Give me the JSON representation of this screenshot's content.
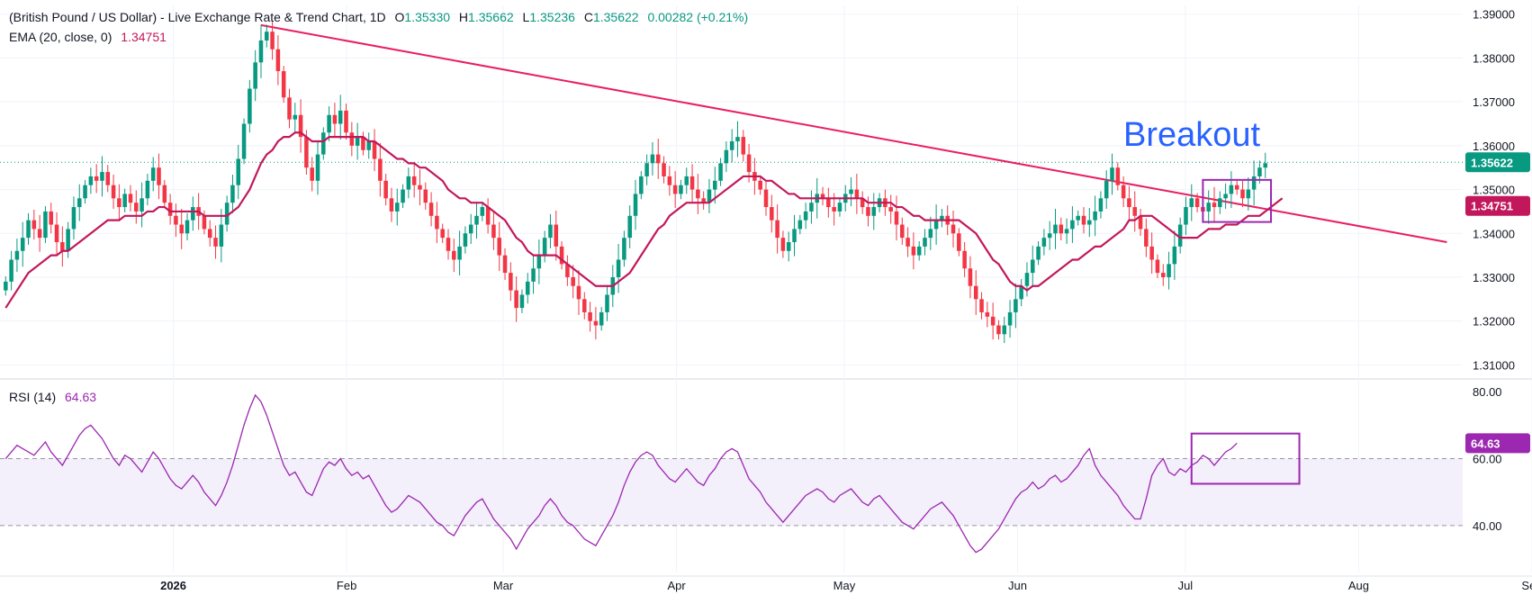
{
  "legend": {
    "symbol": "(British Pound / US Dollar) - Live Exchange Rate & Trend Chart, 1D",
    "o_label": "O",
    "o": "1.35330",
    "h_label": "H",
    "h": "1.35662",
    "l_label": "L",
    "l": "1.35236",
    "c_label": "C",
    "c": "1.35622",
    "change": "0.00282 (+0.21%)",
    "ema_label": "EMA (20, close, 0)",
    "ema_value": "1.34751",
    "rsi_label": "RSI (14)",
    "rsi_value": "64.63"
  },
  "colors": {
    "up": "#089981",
    "down": "#f23645",
    "ema": "#c2185b",
    "trendline": "#e91e63",
    "rsi": "#9c27b0",
    "box": "#9c27b0",
    "breakout_text": "#2962ff",
    "rsi_band": "#f3effb"
  },
  "chart_data": [
    {
      "type": "candlestick",
      "title": "(British Pound / US Dollar) - Live Exchange Rate & Trend Chart, 1D",
      "interval": "1D",
      "price_axis": {
        "ticks": [
          "1.39000",
          "1.38000",
          "1.37000",
          "1.36000",
          "1.35000",
          "1.34000",
          "1.33000",
          "1.32000",
          "1.31000"
        ],
        "ylim": [
          1.307,
          1.392
        ],
        "grid": true
      },
      "time_axis": {
        "labels": [
          "2026",
          "Feb",
          "Mar",
          "Apr",
          "May",
          "Jun",
          "Jul",
          "Aug",
          "Sep"
        ],
        "bold": [
          "2026"
        ],
        "x_range": [
          0,
          270
        ]
      },
      "last_price": "1.35622",
      "ema_label": "1.34751",
      "annotation": "Breakout",
      "trendline": {
        "from": {
          "day": 46,
          "price": 1.3875
        },
        "to": {
          "day": 255,
          "price": 1.338
        }
      },
      "highlight_box": {
        "day_from": 212,
        "day_to": 224,
        "price_low": 1.3426,
        "price_high": 1.3522
      },
      "close": [
        1.329,
        1.334,
        1.336,
        1.339,
        1.343,
        1.341,
        1.339,
        1.345,
        1.342,
        1.338,
        1.336,
        1.341,
        1.346,
        1.348,
        1.351,
        1.353,
        1.352,
        1.354,
        1.351,
        1.348,
        1.346,
        1.349,
        1.347,
        1.345,
        1.348,
        1.352,
        1.355,
        1.351,
        1.347,
        1.344,
        1.342,
        1.34,
        1.343,
        1.346,
        1.344,
        1.341,
        1.339,
        1.337,
        1.342,
        1.347,
        1.351,
        1.357,
        1.365,
        1.373,
        1.379,
        1.384,
        1.386,
        1.382,
        1.377,
        1.371,
        1.366,
        1.367,
        1.362,
        1.355,
        1.352,
        1.358,
        1.363,
        1.367,
        1.365,
        1.368,
        1.363,
        1.36,
        1.362,
        1.359,
        1.361,
        1.357,
        1.352,
        1.348,
        1.345,
        1.347,
        1.35,
        1.353,
        1.351,
        1.35,
        1.347,
        1.344,
        1.341,
        1.339,
        1.336,
        1.334,
        1.337,
        1.34,
        1.342,
        1.344,
        1.346,
        1.342,
        1.339,
        1.335,
        1.331,
        1.327,
        1.323,
        1.326,
        1.329,
        1.332,
        1.335,
        1.339,
        1.342,
        1.337,
        1.333,
        1.33,
        1.328,
        1.325,
        1.322,
        1.32,
        1.319,
        1.322,
        1.326,
        1.33,
        1.334,
        1.339,
        1.344,
        1.349,
        1.353,
        1.356,
        1.358,
        1.356,
        1.353,
        1.351,
        1.349,
        1.351,
        1.353,
        1.35,
        1.348,
        1.347,
        1.35,
        1.352,
        1.356,
        1.359,
        1.361,
        1.362,
        1.358,
        1.354,
        1.352,
        1.35,
        1.346,
        1.343,
        1.339,
        1.336,
        1.338,
        1.341,
        1.343,
        1.345,
        1.347,
        1.349,
        1.348,
        1.346,
        1.345,
        1.347,
        1.349,
        1.35,
        1.348,
        1.346,
        1.344,
        1.346,
        1.348,
        1.346,
        1.345,
        1.342,
        1.339,
        1.337,
        1.335,
        1.337,
        1.339,
        1.341,
        1.343,
        1.344,
        1.342,
        1.34,
        1.336,
        1.332,
        1.328,
        1.325,
        1.322,
        1.321,
        1.319,
        1.317,
        1.319,
        1.322,
        1.325,
        1.328,
        1.331,
        1.334,
        1.337,
        1.339,
        1.34,
        1.342,
        1.34,
        1.341,
        1.343,
        1.344,
        1.342,
        1.343,
        1.345,
        1.348,
        1.352,
        1.355,
        1.351,
        1.348,
        1.346,
        1.344,
        1.341,
        1.337,
        1.334,
        1.331,
        1.33,
        1.333,
        1.337,
        1.342,
        1.346,
        1.348,
        1.346,
        1.345,
        1.347,
        1.346,
        1.348,
        1.349,
        1.351,
        1.35,
        1.348,
        1.35,
        1.353,
        1.355,
        1.356
      ],
      "ema": [
        1.323,
        1.325,
        1.327,
        1.329,
        1.331,
        1.332,
        1.333,
        1.334,
        1.335,
        1.335,
        1.336,
        1.336,
        1.337,
        1.338,
        1.339,
        1.34,
        1.341,
        1.342,
        1.343,
        1.343,
        1.343,
        1.344,
        1.344,
        1.344,
        1.344,
        1.345,
        1.345,
        1.346,
        1.346,
        1.345,
        1.345,
        1.345,
        1.345,
        1.345,
        1.345,
        1.344,
        1.344,
        1.344,
        1.344,
        1.344,
        1.345,
        1.346,
        1.348,
        1.35,
        1.353,
        1.356,
        1.358,
        1.359,
        1.361,
        1.362,
        1.362,
        1.363,
        1.363,
        1.362,
        1.361,
        1.361,
        1.361,
        1.362,
        1.362,
        1.362,
        1.362,
        1.362,
        1.362,
        1.362,
        1.361,
        1.361,
        1.36,
        1.359,
        1.358,
        1.357,
        1.357,
        1.356,
        1.356,
        1.355,
        1.355,
        1.354,
        1.353,
        1.352,
        1.35,
        1.349,
        1.348,
        1.348,
        1.347,
        1.347,
        1.347,
        1.346,
        1.345,
        1.344,
        1.343,
        1.341,
        1.339,
        1.338,
        1.336,
        1.335,
        1.335,
        1.335,
        1.335,
        1.335,
        1.334,
        1.333,
        1.332,
        1.331,
        1.33,
        1.329,
        1.328,
        1.328,
        1.328,
        1.328,
        1.329,
        1.33,
        1.331,
        1.333,
        1.335,
        1.337,
        1.339,
        1.341,
        1.342,
        1.344,
        1.345,
        1.346,
        1.347,
        1.347,
        1.347,
        1.347,
        1.347,
        1.348,
        1.349,
        1.35,
        1.351,
        1.352,
        1.353,
        1.353,
        1.353,
        1.353,
        1.352,
        1.352,
        1.351,
        1.35,
        1.349,
        1.349,
        1.348,
        1.348,
        1.348,
        1.348,
        1.348,
        1.348,
        1.348,
        1.348,
        1.348,
        1.348,
        1.348,
        1.348,
        1.347,
        1.347,
        1.347,
        1.347,
        1.347,
        1.346,
        1.346,
        1.345,
        1.344,
        1.344,
        1.343,
        1.343,
        1.343,
        1.343,
        1.343,
        1.343,
        1.343,
        1.342,
        1.341,
        1.34,
        1.338,
        1.336,
        1.334,
        1.333,
        1.331,
        1.329,
        1.328,
        1.328,
        1.327,
        1.328,
        1.328,
        1.329,
        1.33,
        1.331,
        1.332,
        1.333,
        1.334,
        1.334,
        1.335,
        1.336,
        1.337,
        1.337,
        1.338,
        1.339,
        1.34,
        1.341,
        1.343,
        1.343,
        1.344,
        1.344,
        1.344,
        1.343,
        1.342,
        1.341,
        1.34,
        1.339,
        1.339,
        1.339,
        1.339,
        1.34,
        1.341,
        1.341,
        1.341,
        1.342,
        1.342,
        1.342,
        1.343,
        1.344,
        1.344,
        1.344,
        1.345,
        1.346,
        1.347,
        1.348
      ]
    },
    {
      "type": "line",
      "title": "RSI (14)",
      "value": "64.63",
      "ylim": [
        26,
        83
      ],
      "ticks": [
        "80.00",
        "60.00",
        "40.00"
      ],
      "bands": [
        40,
        60
      ],
      "highlight_box": {
        "day_from": 210,
        "day_to": 229,
        "value_low": 52.5,
        "value_high": 67.5
      },
      "values": [
        60,
        62,
        64,
        63,
        62,
        61,
        63,
        65,
        62,
        60,
        58,
        61,
        64,
        67,
        69,
        70,
        68,
        66,
        63,
        60,
        58,
        61,
        60,
        58,
        56,
        59,
        62,
        60,
        57,
        54,
        52,
        51,
        53,
        55,
        53,
        50,
        48,
        46,
        49,
        53,
        58,
        64,
        70,
        75,
        79,
        77,
        73,
        68,
        63,
        58,
        55,
        56,
        53,
        50,
        49,
        53,
        57,
        59,
        58,
        60,
        57,
        55,
        56,
        54,
        55,
        52,
        49,
        46,
        44,
        45,
        47,
        49,
        48,
        47,
        45,
        43,
        41,
        40,
        38,
        37,
        40,
        43,
        45,
        47,
        48,
        45,
        42,
        40,
        38,
        36,
        33,
        36,
        39,
        41,
        43,
        46,
        48,
        46,
        43,
        41,
        40,
        38,
        36,
        35,
        34,
        37,
        40,
        43,
        47,
        52,
        56,
        59,
        61,
        62,
        61,
        58,
        56,
        54,
        53,
        55,
        57,
        55,
        53,
        52,
        55,
        57,
        60,
        62,
        63,
        62,
        58,
        54,
        52,
        50,
        47,
        45,
        43,
        41,
        43,
        45,
        47,
        49,
        50,
        51,
        50,
        48,
        47,
        49,
        50,
        51,
        49,
        47,
        46,
        48,
        49,
        47,
        45,
        43,
        41,
        40,
        39,
        41,
        43,
        45,
        46,
        47,
        45,
        43,
        40,
        37,
        34,
        32,
        33,
        35,
        37,
        39,
        42,
        45,
        48,
        50,
        51,
        53,
        51,
        52,
        54,
        55,
        53,
        54,
        56,
        58,
        61,
        63,
        58,
        55,
        53,
        51,
        49,
        46,
        44,
        42,
        42,
        48,
        55,
        58,
        60,
        56,
        55,
        57,
        56,
        58,
        59,
        61,
        60,
        58,
        60,
        62,
        63,
        64.63
      ]
    }
  ]
}
